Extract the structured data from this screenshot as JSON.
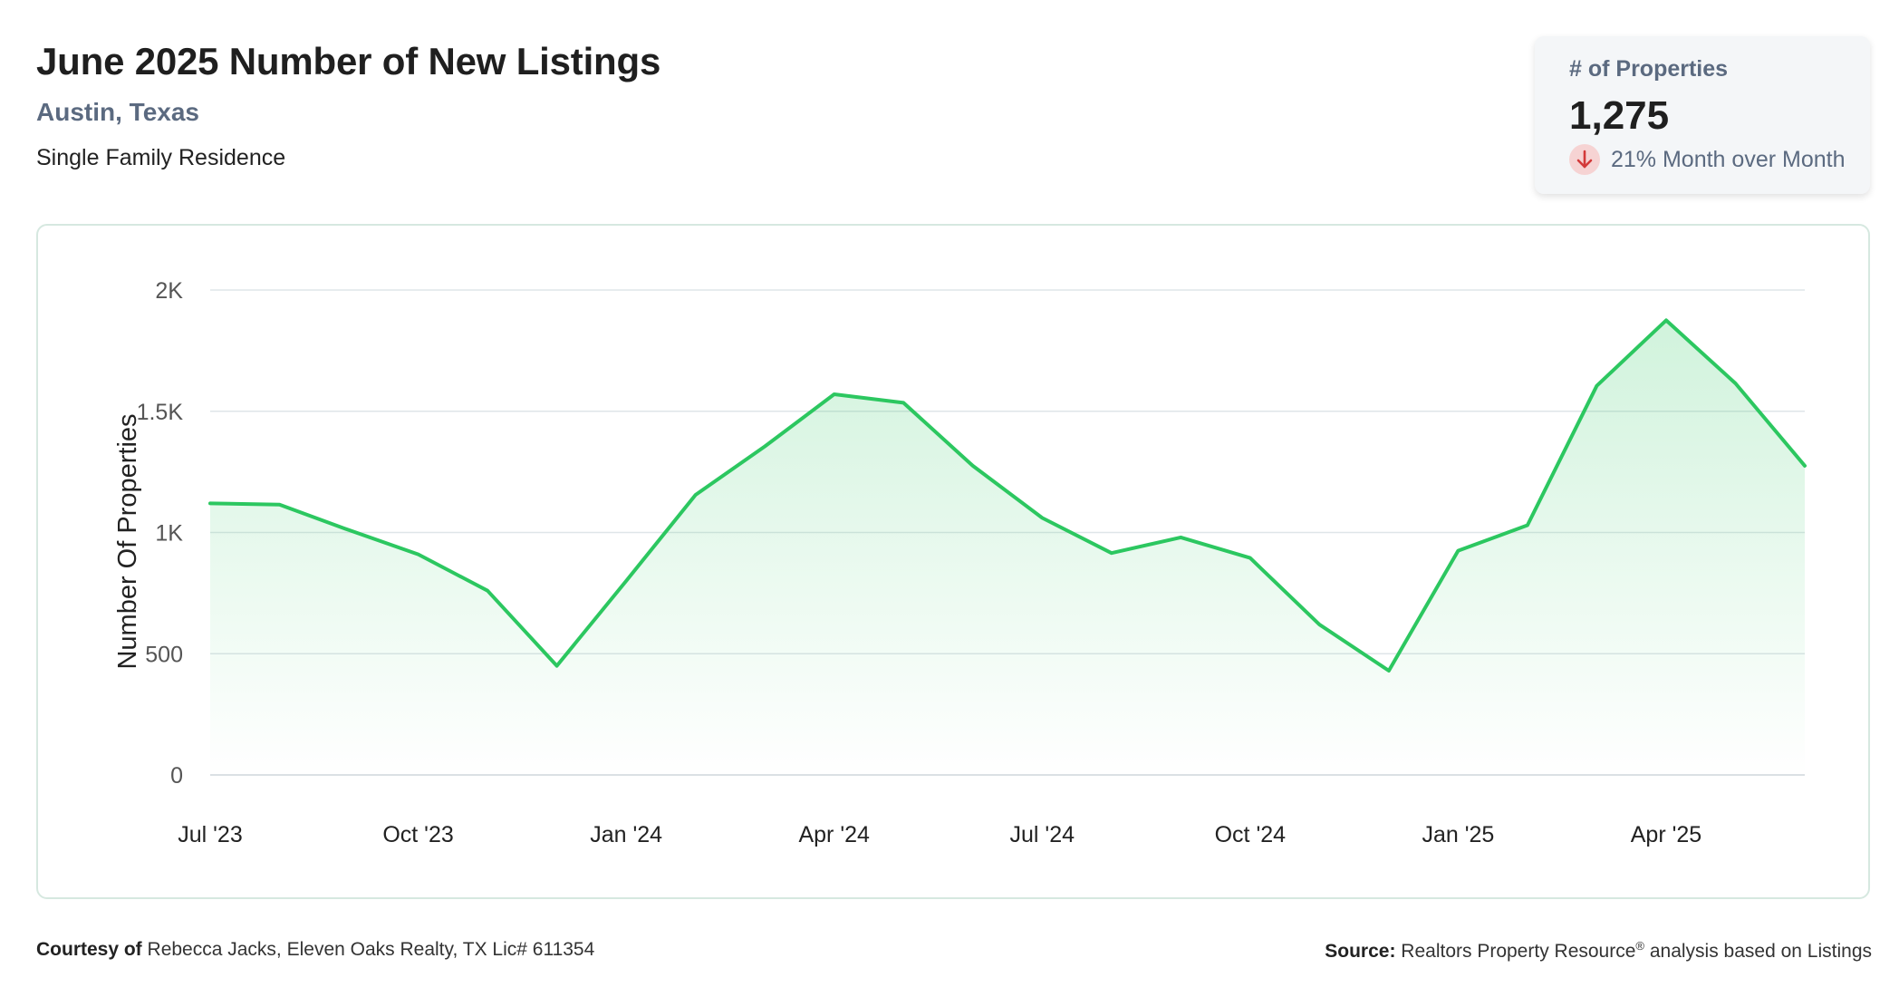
{
  "header": {
    "title": "June 2025 Number of New Listings",
    "location": "Austin, Texas",
    "property_type": "Single Family Residence"
  },
  "kpi": {
    "label": "# of Properties",
    "value": "1,275",
    "change": "21% Month over Month",
    "direction": "down",
    "down_color": "#d33a3a"
  },
  "chart_data": {
    "type": "area",
    "ylabel": "Number Of Properties",
    "xlabel": "",
    "ylim": [
      0,
      2000
    ],
    "y_ticks": [
      0,
      500,
      1000,
      1500,
      2000
    ],
    "y_tick_labels": [
      "0",
      "500",
      "1K",
      "1.5K",
      "2K"
    ],
    "x_tick_labels": [
      "Jul '23",
      "Oct '23",
      "Jan '24",
      "Apr '24",
      "Jul '24",
      "Oct '24",
      "Jan '25",
      "Apr '25"
    ],
    "x": [
      "Jul '23",
      "Aug '23",
      "Sep '23",
      "Oct '23",
      "Nov '23",
      "Dec '23",
      "Jan '24",
      "Feb '24",
      "Mar '24",
      "Apr '24",
      "May '24",
      "Jun '24",
      "Jul '24",
      "Aug '24",
      "Sep '24",
      "Oct '24",
      "Nov '24",
      "Dec '24",
      "Jan '25",
      "Feb '25",
      "Mar '25",
      "Apr '25",
      "May '25",
      "Jun '25"
    ],
    "values": [
      1120,
      1115,
      1010,
      910,
      760,
      450,
      800,
      1155,
      1355,
      1570,
      1535,
      1275,
      1060,
      915,
      980,
      895,
      620,
      430,
      925,
      1030,
      1605,
      1875,
      1615,
      1275
    ],
    "grid": true,
    "legend": "none",
    "line_color": "#2cc760",
    "fill_color": "#2cc760"
  },
  "footer": {
    "courtesy_label": "Courtesy of",
    "courtesy_text": "Rebecca Jacks, Eleven Oaks Realty, TX Lic# 611354",
    "source_label": "Source:",
    "source_text_1": "Realtors Property Resource",
    "source_sup": "®",
    "source_text_2": "analysis based on Listings"
  }
}
